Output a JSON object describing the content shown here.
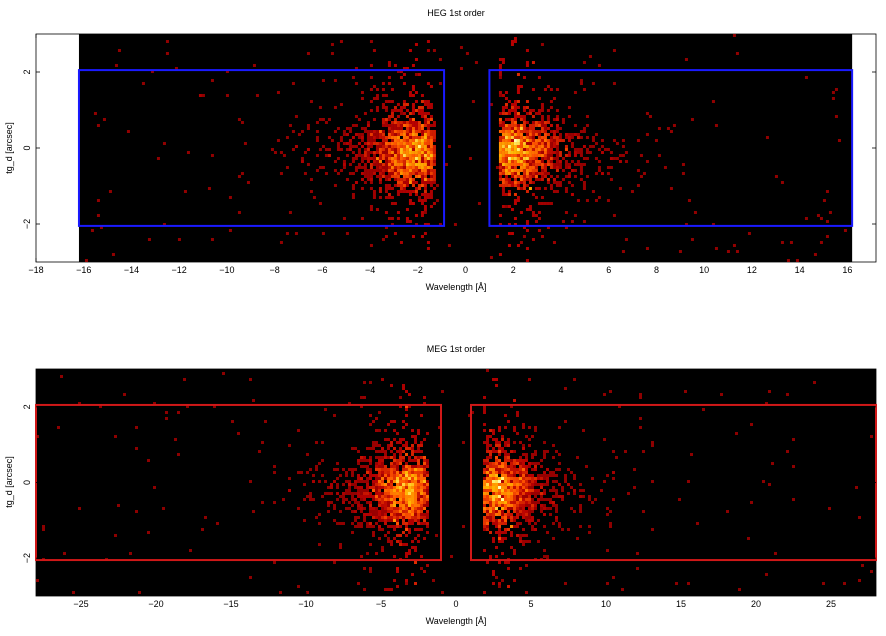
{
  "chart_data": [
    {
      "type": "heatmap",
      "title": "HEG 1st order",
      "xlabel": "Wavelength [Å]",
      "ylabel": "tg_d [arcsec]",
      "xlim": [
        -18,
        17.2
      ],
      "ylim": [
        -3,
        3
      ],
      "xticks": [
        -18,
        -16,
        -14,
        -12,
        -10,
        -8,
        -6,
        -4,
        -2,
        0,
        2,
        4,
        6,
        8,
        10,
        12,
        14,
        16
      ],
      "yticks": [
        -2,
        0,
        2
      ],
      "data_extent_x": [
        -16.2,
        16.2
      ],
      "regions": [
        {
          "x": [
            -16.2,
            -0.9
          ],
          "y": [
            -2.05,
            2.05
          ]
        },
        {
          "x": [
            1.0,
            16.2
          ],
          "y": [
            -2.05,
            2.05
          ]
        }
      ],
      "region_color": "#1a1aff",
      "clusters": [
        {
          "center_x": -2.1,
          "center_y": -0.1,
          "spread_x": 1.3,
          "spread_y": 0.45,
          "edge_x": -1.3,
          "side": "left"
        },
        {
          "center_x": 2.0,
          "center_y": -0.1,
          "spread_x": 1.3,
          "spread_y": 0.45,
          "edge_x": 1.4,
          "side": "right"
        }
      ]
    },
    {
      "type": "heatmap",
      "title": "MEG 1st order",
      "xlabel": "Wavelength [Å]",
      "ylabel": "tg_d [arcsec]",
      "xlim": [
        -28,
        28
      ],
      "ylim": [
        -3,
        3
      ],
      "xticks": [
        -25,
        -20,
        -15,
        -10,
        -5,
        0,
        5,
        10,
        15,
        20,
        25
      ],
      "yticks": [
        -2,
        0,
        2
      ],
      "data_extent_x": [
        -28,
        28
      ],
      "regions": [
        {
          "x": [
            -28,
            -1.0
          ],
          "y": [
            -2.05,
            2.05
          ]
        },
        {
          "x": [
            1.0,
            28
          ],
          "y": [
            -2.05,
            2.05
          ]
        }
      ],
      "region_color": "#d01818",
      "clusters": [
        {
          "center_x": -3.2,
          "center_y": -0.2,
          "spread_x": 1.8,
          "spread_y": 0.45,
          "edge_x": -1.9,
          "side": "left"
        },
        {
          "center_x": 2.7,
          "center_y": -0.2,
          "spread_x": 1.8,
          "spread_y": 0.45,
          "edge_x": 1.8,
          "side": "right"
        }
      ]
    }
  ]
}
